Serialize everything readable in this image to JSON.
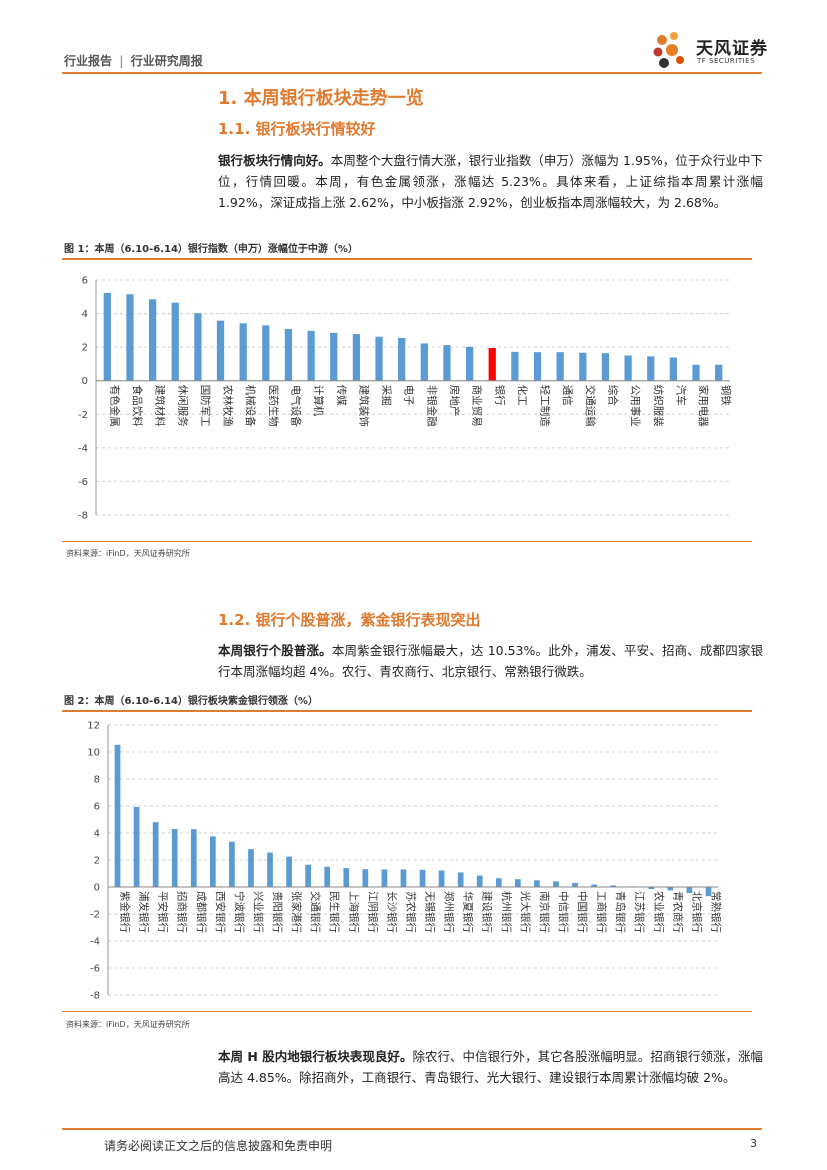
{
  "header": {
    "doc_type": "行业报告",
    "separator": "|",
    "doc_subtype": "行业研究周报",
    "logo_cn": "天风证券",
    "logo_en": "TF SECURITIES"
  },
  "section1": {
    "title": "1. 本周银行板块走势一览",
    "sub1_title": "1.1. 银行板块行情较好",
    "sub1_lead": "银行板块行情向好。",
    "sub1_body": "本周整个大盘行情大涨，银行业指数（申万）涨幅为 1.95%，位于众行业中下位，行情回暖。本周，有色金属领涨，涨幅达 5.23%。具体来看，上证综指本周累计涨幅 1.92%，深证成指上涨 2.62%，中小板指涨 2.92%，创业板指本周涨幅较大，为 2.68%。",
    "fig1_title": "图 1：本周（6.10-6.14）银行指数（申万）涨幅位于中游（%）",
    "fig1_source": "资料来源：iFinD，天风证券研究所",
    "sub2_title": "1.2. 银行个股普涨，紫金银行表现突出",
    "sub2_lead": "本周银行个股普涨。",
    "sub2_body": "本周紫金银行涨幅最大，达 10.53%。此外，浦发、平安、招商、成都四家银行本周涨幅均超 4%。农行、青农商行、北京银行、常熟银行微跌。",
    "fig2_title": "图 2：本周（6.10-6.14）银行板块紫金银行领涨（%）",
    "fig2_source": "资料来源：iFinD，天风证券研究所",
    "sub3_lead": "本周 H 股内地银行板块表现良好。",
    "sub3_body": "除农行、中信银行外，其它各股涨幅明显。招商银行领涨，涨幅高达 4.85%。除招商外，工商银行、青岛银行、光大银行、建设银行本周累计涨幅均破 2%。"
  },
  "footer": {
    "disclaimer": "请务必阅读正文之后的信息披露和免责申明",
    "page": "3"
  },
  "colors": {
    "accent": "#e07a2f",
    "bar": "#5b9bd5",
    "highlight": "#ff0000"
  },
  "chart_data": [
    {
      "type": "bar",
      "title": "图 1：本周（6.10-6.14）银行指数（申万）涨幅位于中游（%）",
      "categories": [
        "有色金属",
        "食品饮料",
        "建筑材料",
        "休闲服务",
        "国防军工",
        "农林牧渔",
        "机械设备",
        "医药生物",
        "电气设备",
        "计算机",
        "传媒",
        "建筑装饰",
        "采掘",
        "电子",
        "非银金融",
        "房地产",
        "商业贸易",
        "银行",
        "化工",
        "轻工制造",
        "通信",
        "交通运输",
        "综合",
        "公用事业",
        "纺织服装",
        "汽车",
        "家用电器",
        "钢铁"
      ],
      "values": [
        5.23,
        5.15,
        4.85,
        4.65,
        4.02,
        3.58,
        3.42,
        3.3,
        3.08,
        2.97,
        2.85,
        2.78,
        2.62,
        2.55,
        2.22,
        2.12,
        2.02,
        1.95,
        1.72,
        1.7,
        1.7,
        1.67,
        1.64,
        1.5,
        1.45,
        1.38,
        0.95,
        0.95
      ],
      "highlight": "银行",
      "ylim": [
        -8,
        6
      ],
      "yticks": [
        6,
        4,
        2,
        0,
        -2,
        -4,
        -6,
        -8
      ],
      "grid": true
    },
    {
      "type": "bar",
      "title": "图 2：本周（6.10-6.14）银行板块紫金银行领涨（%）",
      "categories": [
        "紫金银行",
        "浦发银行",
        "平安银行",
        "招商银行",
        "成都银行",
        "西安银行",
        "宁波银行",
        "兴业银行",
        "贵阳银行",
        "张家港行",
        "交通银行",
        "民生银行",
        "上海银行",
        "江阴银行",
        "长沙银行",
        "苏农银行",
        "无锡银行",
        "郑州银行",
        "华夏银行",
        "建设银行",
        "杭州银行",
        "光大银行",
        "南京银行",
        "中信银行",
        "中国银行",
        "工商银行",
        "青岛银行",
        "江苏银行",
        "农业银行",
        "青农商行",
        "北京银行",
        "常熟银行"
      ],
      "values": [
        10.53,
        5.93,
        4.8,
        4.3,
        4.28,
        3.75,
        3.35,
        2.8,
        2.55,
        2.25,
        1.65,
        1.5,
        1.4,
        1.32,
        1.3,
        1.3,
        1.28,
        1.22,
        1.08,
        0.85,
        0.65,
        0.58,
        0.5,
        0.42,
        0.3,
        0.18,
        0.12,
        0.05,
        -0.15,
        -0.25,
        -0.45,
        -0.68
      ],
      "ylim": [
        -8,
        12
      ],
      "yticks": [
        12,
        10,
        8,
        6,
        4,
        2,
        0,
        -2,
        -4,
        -6,
        -8
      ],
      "grid": true
    }
  ]
}
